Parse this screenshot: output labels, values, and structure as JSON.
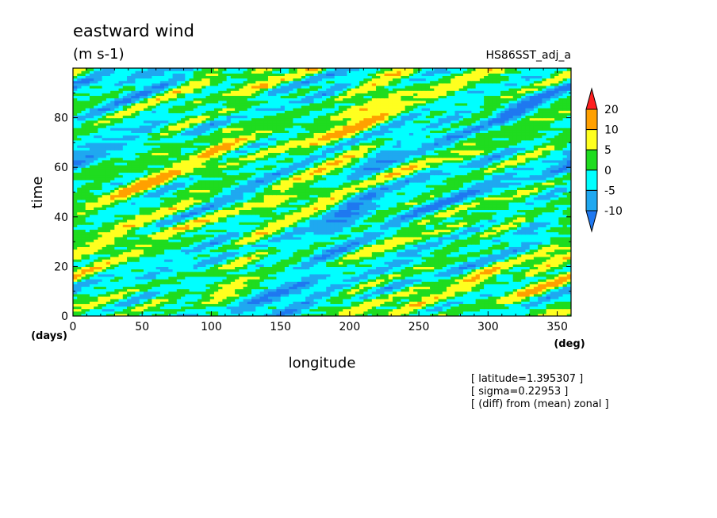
{
  "header": {
    "title": "eastward wind",
    "units": "(m s-1)",
    "dataset": "HS86SST_adj_a"
  },
  "info": {
    "lines": [
      "[ latitude=1.395307 ]",
      "[ sigma=0.22953 ]",
      "[ (diff) from (mean) zonal ]"
    ]
  },
  "colors": {
    "lt_neg10": "#1f78f0",
    "neg10_neg5": "#1fa8f0",
    "neg5_0": "#00ffff",
    "0_5": "#1fdc1f",
    "5_10": "#ffff1f",
    "10_20": "#ffa000",
    "gt_20": "#ff1f1f"
  },
  "chart_data": {
    "type": "heatmap",
    "title": "eastward wind",
    "subtitle": "(m s-1)",
    "xlabel": "longitude",
    "ylabel": "time",
    "xunit": "(deg)",
    "yunit": "(days)",
    "xlim": [
      0,
      360
    ],
    "ylim": [
      0,
      100
    ],
    "xticks": [
      0,
      50,
      100,
      150,
      200,
      250,
      300,
      350
    ],
    "yticks": [
      0,
      20,
      40,
      60,
      80
    ],
    "colorbar": {
      "levels": [
        -10,
        -5,
        0,
        5,
        10,
        20
      ],
      "labels": [
        "20",
        "10",
        "5",
        "0",
        "-5",
        "-10"
      ],
      "bins": [
        {
          "range": "< -10",
          "color": "#1f78f0"
        },
        {
          "range": "-10 to -5",
          "color": "#1fa8f0"
        },
        {
          "range": "-5 to 0",
          "color": "#00ffff"
        },
        {
          "range": "0 to 5",
          "color": "#1fdc1f"
        },
        {
          "range": "5 to 10",
          "color": "#ffff1f"
        },
        {
          "range": "10 to 20",
          "color": "#ffa000"
        },
        {
          "range": "> 20",
          "color": "#ff1f1f"
        }
      ]
    },
    "grid": false
  }
}
